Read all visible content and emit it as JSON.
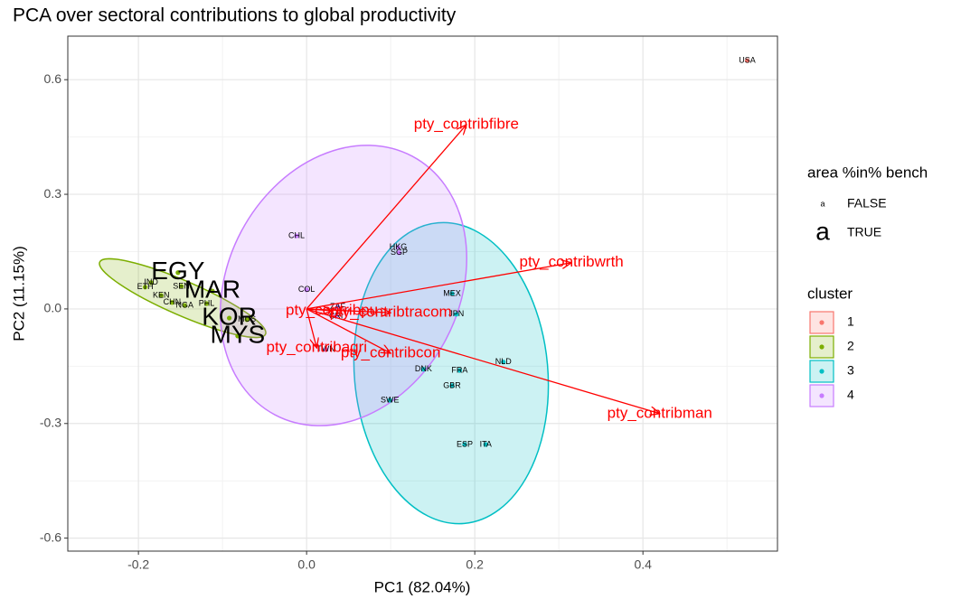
{
  "chart_data": {
    "type": "biplot",
    "title": "PCA over sectoral contributions to global productivity",
    "x_label": "PC1 (82.04%)",
    "y_label": "PC2 (11.15%)",
    "xlim": [
      -0.284,
      0.56
    ],
    "ylim": [
      -0.634,
      0.714
    ],
    "xticks": [
      -0.2,
      {
        "value": 0,
        "label": "0.0"
      },
      0.2,
      0.4
    ],
    "yticks": [
      -0.6,
      -0.3,
      {
        "value": 0,
        "label": "0.0"
      },
      0.3,
      0.6
    ],
    "x_minor_grid": [
      -0.1,
      0.1,
      0.3,
      0.5
    ],
    "y_minor_grid": [
      -0.45,
      -0.15,
      0.15,
      0.45
    ],
    "grid": true,
    "size_legend": {
      "title": "area %in% bench",
      "glyph": "a",
      "entries": [
        "FALSE",
        "TRUE"
      ]
    },
    "color_legend_title": "cluster",
    "series": [
      {
        "name": "1",
        "color": "#F8766D",
        "points": [
          {
            "label": "USA",
            "x": 0.524,
            "y": 0.65,
            "bench": false
          }
        ]
      },
      {
        "name": "2",
        "color": "#7CAE00",
        "points": [
          {
            "label": "EGY",
            "x": -0.153,
            "y": 0.095,
            "bench": true
          },
          {
            "label": "MAR",
            "x": -0.112,
            "y": 0.047,
            "bench": true
          },
          {
            "label": "KOR",
            "x": -0.092,
            "y": -0.024,
            "bench": true
          },
          {
            "label": "MYS",
            "x": -0.082,
            "y": -0.071,
            "bench": true
          },
          {
            "label": "ETH",
            "x": -0.192,
            "y": 0.057,
            "bench": false
          },
          {
            "label": "IND",
            "x": -0.185,
            "y": 0.069,
            "bench": false
          },
          {
            "label": "SEN",
            "x": -0.149,
            "y": 0.059,
            "bench": false
          },
          {
            "label": "KEN",
            "x": -0.173,
            "y": 0.035,
            "bench": false
          },
          {
            "label": "CHN",
            "x": -0.16,
            "y": 0.017,
            "bench": false
          },
          {
            "label": "NGA",
            "x": -0.145,
            "y": 0.009,
            "bench": false
          },
          {
            "label": "PHL",
            "x": -0.119,
            "y": 0.014,
            "bench": false
          },
          {
            "label": "MUS",
            "x": -0.071,
            "y": -0.028,
            "bench": false
          }
        ]
      },
      {
        "name": "3",
        "color": "#00BFC4",
        "points": [
          {
            "label": "MEX",
            "x": 0.173,
            "y": 0.04,
            "bench": false
          },
          {
            "label": "JPN",
            "x": 0.178,
            "y": -0.014,
            "bench": false
          },
          {
            "label": "NLD",
            "x": 0.234,
            "y": -0.139,
            "bench": false
          },
          {
            "label": "DNK",
            "x": 0.139,
            "y": -0.158,
            "bench": false
          },
          {
            "label": "FRA",
            "x": 0.182,
            "y": -0.161,
            "bench": false
          },
          {
            "label": "GBR",
            "x": 0.173,
            "y": -0.201,
            "bench": false
          },
          {
            "label": "SWE",
            "x": 0.099,
            "y": -0.239,
            "bench": false
          },
          {
            "label": "ESP",
            "x": 0.188,
            "y": -0.355,
            "bench": false
          },
          {
            "label": "ITA",
            "x": 0.213,
            "y": -0.355,
            "bench": false
          }
        ]
      },
      {
        "name": "4",
        "color": "#C77CFF",
        "points": [
          {
            "label": "CHL",
            "x": -0.012,
            "y": 0.191,
            "bench": false
          },
          {
            "label": "HKG",
            "x": 0.109,
            "y": 0.161,
            "bench": false
          },
          {
            "label": "SGP",
            "x": 0.11,
            "y": 0.147,
            "bench": false
          },
          {
            "label": "COL",
            "x": 0.0,
            "y": 0.05,
            "bench": false
          },
          {
            "label": "ZAF",
            "x": 0.037,
            "y": 0.005,
            "bench": false
          },
          {
            "label": "CRI",
            "x": 0.035,
            "y": -0.019,
            "bench": false
          },
          {
            "label": "TWN",
            "x": 0.023,
            "y": -0.106,
            "bench": false
          }
        ]
      }
    ],
    "arrows": [
      {
        "label": "pty_contribfibre",
        "x": 0.19,
        "y": 0.482
      },
      {
        "label": "pty_contribwrth",
        "x": 0.315,
        "y": 0.121
      },
      {
        "label": "pty_contribpu",
        "x": 0.03,
        "y": -0.005
      },
      {
        "label": "pty_contribtracom",
        "x": 0.1,
        "y": -0.01
      },
      {
        "label": "pty_contribagri",
        "x": 0.012,
        "y": -0.102
      },
      {
        "label": "pty_contribcon",
        "x": 0.1,
        "y": -0.116
      },
      {
        "label": "pty_contribman",
        "x": 0.42,
        "y": -0.274
      }
    ]
  }
}
